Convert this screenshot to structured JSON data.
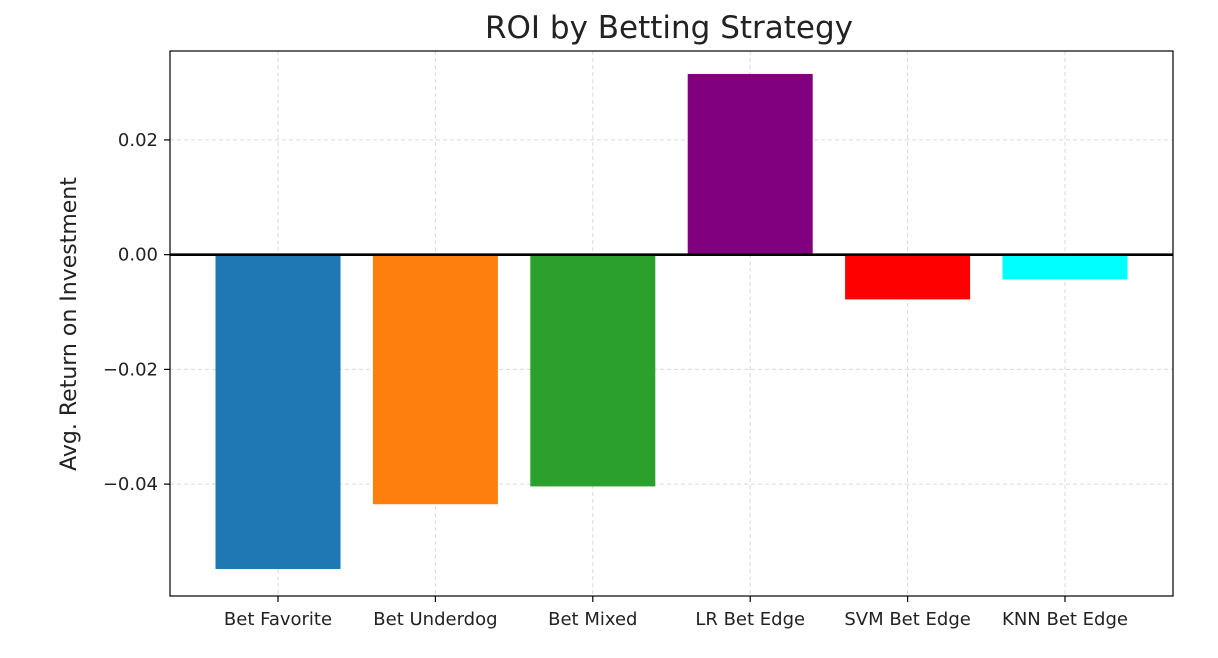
{
  "chart_data": {
    "type": "bar",
    "title": "ROI by Betting Strategy",
    "xlabel": "",
    "ylabel": "Avg. Return on Investment",
    "categories": [
      "Bet Favorite",
      "Bet Underdog",
      "Bet Mixed",
      "LR Bet Edge",
      "SVM Bet Edge",
      "KNN Bet Edge"
    ],
    "values": [
      -0.0548,
      -0.0435,
      -0.0404,
      0.0315,
      -0.0078,
      -0.0043
    ],
    "colors": [
      "#1f77b4",
      "#ff7f0e",
      "#2ca02c",
      "#800080",
      "#ff0000",
      "#00ffff"
    ],
    "ylim": [
      -0.0595,
      0.0355
    ],
    "yticks": [
      0.02,
      0.0,
      -0.02,
      -0.04
    ],
    "ytick_labels": [
      "0.02",
      "0.00",
      "−0.02",
      "−0.04"
    ],
    "grid": true,
    "zero_line": true
  }
}
